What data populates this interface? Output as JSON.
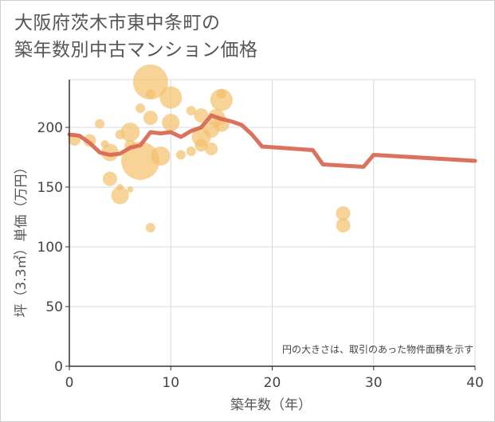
{
  "title_lines": [
    "大阪府茨木市東中条町の",
    "築年数別中古マンション価格"
  ],
  "chart_data": {
    "type": "scatter+line",
    "xlabel": "築年数（年）",
    "ylabel": "坪（3.3㎡）単価（万円）",
    "xlim": [
      0,
      40
    ],
    "ylim": [
      0,
      240
    ],
    "xticks": [
      0,
      10,
      20,
      30,
      40
    ],
    "yticks": [
      0,
      50,
      100,
      150,
      200
    ],
    "xtick_labels": [
      "0",
      "10",
      "20",
      "30",
      "40"
    ],
    "ytick_labels": [
      "0",
      "50",
      "100",
      "150",
      "200"
    ],
    "annotation": "円の大きさは、取引のあった物件面積を示す",
    "colors": {
      "bubble": "#f4c06c",
      "line": "#d86a55",
      "grid": "#d4dce6",
      "axis": "#333333"
    },
    "scatter": [
      {
        "x": 0.5,
        "y": 190,
        "size": 8
      },
      {
        "x": 2,
        "y": 189,
        "size": 8
      },
      {
        "x": 3,
        "y": 203,
        "size": 6
      },
      {
        "x": 3.5,
        "y": 186,
        "size": 5
      },
      {
        "x": 4,
        "y": 179,
        "size": 11
      },
      {
        "x": 4,
        "y": 157,
        "size": 9
      },
      {
        "x": 5,
        "y": 194,
        "size": 6
      },
      {
        "x": 5,
        "y": 150,
        "size": 4
      },
      {
        "x": 5,
        "y": 143,
        "size": 11
      },
      {
        "x": 6,
        "y": 196,
        "size": 12
      },
      {
        "x": 6,
        "y": 185,
        "size": 7
      },
      {
        "x": 6,
        "y": 148,
        "size": 4
      },
      {
        "x": 7,
        "y": 216,
        "size": 6
      },
      {
        "x": 7,
        "y": 172,
        "size": 24
      },
      {
        "x": 8,
        "y": 238,
        "size": 22
      },
      {
        "x": 8,
        "y": 228,
        "size": 6
      },
      {
        "x": 8,
        "y": 208,
        "size": 9
      },
      {
        "x": 8,
        "y": 116,
        "size": 6
      },
      {
        "x": 9,
        "y": 176,
        "size": 12
      },
      {
        "x": 10,
        "y": 225,
        "size": 14
      },
      {
        "x": 10,
        "y": 204,
        "size": 11
      },
      {
        "x": 11,
        "y": 177,
        "size": 6
      },
      {
        "x": 12,
        "y": 214,
        "size": 6
      },
      {
        "x": 12,
        "y": 180,
        "size": 6
      },
      {
        "x": 13,
        "y": 210,
        "size": 9
      },
      {
        "x": 13,
        "y": 192,
        "size": 12
      },
      {
        "x": 13,
        "y": 185,
        "size": 8
      },
      {
        "x": 14,
        "y": 198,
        "size": 10
      },
      {
        "x": 14,
        "y": 182,
        "size": 8
      },
      {
        "x": 14.5,
        "y": 208,
        "size": 11
      },
      {
        "x": 15,
        "y": 228,
        "size": 6
      },
      {
        "x": 15,
        "y": 223,
        "size": 14
      },
      {
        "x": 15,
        "y": 203,
        "size": 10
      },
      {
        "x": 27,
        "y": 128,
        "size": 9
      },
      {
        "x": 27,
        "y": 118,
        "size": 9
      }
    ],
    "trend": {
      "x": [
        0,
        1,
        2,
        3,
        4,
        5,
        6,
        7,
        8,
        9,
        10,
        11,
        12,
        13,
        14,
        15,
        16,
        17,
        18,
        19,
        24,
        25,
        29,
        30,
        40
      ],
      "y": [
        194,
        193,
        187,
        179,
        177,
        178,
        183,
        185,
        196,
        195,
        196,
        192,
        197,
        200,
        210,
        207,
        205,
        202,
        194,
        184,
        181,
        169,
        167,
        177,
        172
      ]
    }
  }
}
